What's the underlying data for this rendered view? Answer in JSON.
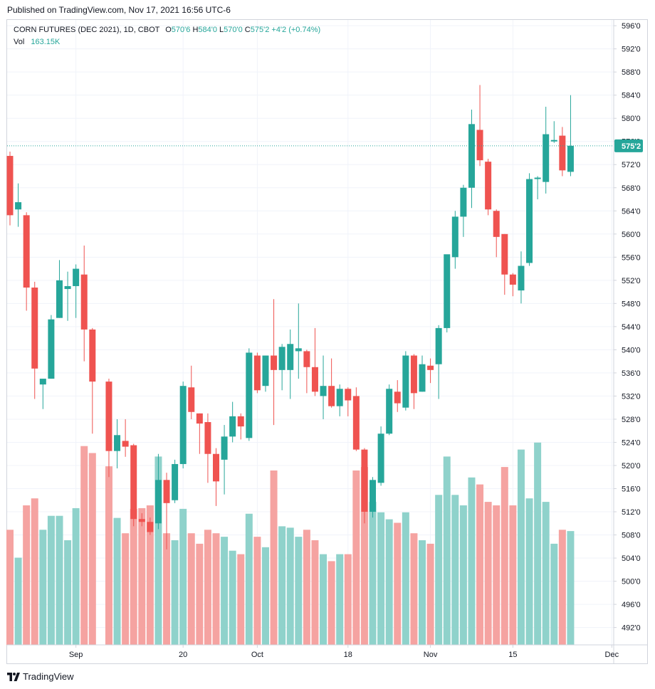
{
  "header": {
    "published": "Published on TradingView.com, Nov 17, 2021 16:56 UTC-6"
  },
  "legend": {
    "symbol": "CORN FUTURES (DEC 2021), 1D, CBOT",
    "o_label": "O",
    "o_value": "570'6",
    "h_label": "H",
    "h_value": "584'0",
    "l_label": "L",
    "l_value": "570'0",
    "c_label": "C",
    "c_value": "575'2",
    "change": "+4'2 (+0.74%)",
    "vol_label": "Vol",
    "vol_value": "163.15K"
  },
  "footer": {
    "logo_text": "TradingView"
  },
  "colors": {
    "up": "#26a69a",
    "down": "#ef5350",
    "up_vol": "#8fd2cb",
    "down_vol": "#f5a3a1",
    "grid": "#f0f3fa",
    "axis_text": "#131722"
  },
  "chart_data": {
    "type": "candlestick",
    "title": "CORN FUTURES (DEC 2021), 1D, CBOT",
    "price_axis": {
      "range": [
        489,
        597
      ],
      "ticks": [
        "496'0",
        "500'0",
        "504'0",
        "508'0",
        "512'0",
        "516'0",
        "520'0",
        "524'0",
        "528'0",
        "532'0",
        "536'0",
        "540'0",
        "544'0",
        "548'0",
        "552'0",
        "556'0",
        "560'0",
        "564'0",
        "568'0",
        "572'0",
        "576'0",
        "580'0",
        "584'0",
        "588'0",
        "592'0",
        "596'0"
      ],
      "tick_values": [
        496,
        500,
        504,
        508,
        512,
        516,
        520,
        524,
        528,
        532,
        536,
        540,
        544,
        548,
        552,
        556,
        560,
        564,
        568,
        572,
        576,
        580,
        584,
        588,
        592,
        596
      ],
      "hidden_ticks": [
        "492'0"
      ],
      "hidden_tick_values": [
        492
      ],
      "last_price": 575.25,
      "last_price_label": "575'2"
    },
    "time_axis": {
      "labels": [
        "Sep",
        "20",
        "Oct",
        "18",
        "Nov",
        "15",
        "Dec"
      ],
      "label_dates": [
        "2021-09-01",
        "2021-09-20",
        "2021-10-01",
        "2021-10-18",
        "2021-11-01",
        "2021-11-15",
        "2021-12-01"
      ]
    },
    "volume": {
      "max_visible": 300000
    },
    "candles": [
      {
        "date": "2021-08-20",
        "o": 573.5,
        "h": 574.25,
        "l": 561.5,
        "c": 563.25,
        "v": 165000
      },
      {
        "date": "2021-08-23",
        "o": 564.25,
        "h": 568.75,
        "l": 561.25,
        "c": 565.5,
        "v": 125000
      },
      {
        "date": "2021-08-24",
        "o": 563.25,
        "h": 563.75,
        "l": 546.75,
        "c": 550.75,
        "v": 200000
      },
      {
        "date": "2021-08-25",
        "o": 550.75,
        "h": 551.75,
        "l": 531.5,
        "c": 536.75,
        "v": 210000
      },
      {
        "date": "2021-08-26",
        "o": 534.0,
        "h": 535.0,
        "l": 529.75,
        "c": 535.0,
        "v": 165000
      },
      {
        "date": "2021-08-27",
        "o": 535.0,
        "h": 546.0,
        "l": 535.0,
        "c": 545.25,
        "v": 185000
      },
      {
        "date": "2021-08-30",
        "o": 545.5,
        "h": 555.5,
        "l": 545.5,
        "c": 552.0,
        "v": 185000
      },
      {
        "date": "2021-08-31",
        "o": 550.5,
        "h": 553.5,
        "l": 545.0,
        "c": 551.0,
        "v": 150000
      },
      {
        "date": "2021-09-01",
        "o": 551.0,
        "h": 554.75,
        "l": 545.5,
        "c": 554.0,
        "v": 196000
      },
      {
        "date": "2021-09-02",
        "o": 553.0,
        "h": 558.0,
        "l": 538.0,
        "c": 543.5,
        "v": 285000
      },
      {
        "date": "2021-09-03",
        "o": 543.5,
        "h": 543.75,
        "l": 525.5,
        "c": 534.5,
        "v": 275000
      },
      {
        "date": "2021-09-07",
        "o": 534.5,
        "h": 535.0,
        "l": 518.0,
        "c": 522.5,
        "v": 256000
      },
      {
        "date": "2021-09-08",
        "o": 522.5,
        "h": 528.0,
        "l": 519.5,
        "c": 525.25,
        "v": 182000
      },
      {
        "date": "2021-09-09",
        "o": 524.25,
        "h": 528.0,
        "l": 521.5,
        "c": 523.25,
        "v": 160000
      },
      {
        "date": "2021-09-10",
        "o": 523.5,
        "h": 523.75,
        "l": 509.5,
        "c": 510.75,
        "v": 195000
      },
      {
        "date": "2021-09-13",
        "o": 510.75,
        "h": 511.75,
        "l": 509.5,
        "c": 510.25,
        "v": 196000
      },
      {
        "date": "2021-09-14",
        "o": 510.25,
        "h": 511.0,
        "l": 508.0,
        "c": 508.5,
        "v": 200000
      },
      {
        "date": "2021-09-15",
        "o": 510.0,
        "h": 522.0,
        "l": 509.0,
        "c": 517.5,
        "v": 270000
      },
      {
        "date": "2021-09-16",
        "o": 517.5,
        "h": 518.75,
        "l": 505.5,
        "c": 513.5,
        "v": 160000
      },
      {
        "date": "2021-09-17",
        "o": 514.0,
        "h": 521.0,
        "l": 513.5,
        "c": 520.25,
        "v": 150000
      },
      {
        "date": "2021-09-20",
        "o": 520.25,
        "h": 534.5,
        "l": 519.5,
        "c": 533.75,
        "v": 195000
      },
      {
        "date": "2021-09-21",
        "o": 533.5,
        "h": 537.25,
        "l": 528.0,
        "c": 529.25,
        "v": 160000
      },
      {
        "date": "2021-09-22",
        "o": 529.0,
        "h": 529.0,
        "l": 522.0,
        "c": 527.25,
        "v": 145000
      },
      {
        "date": "2021-09-23",
        "o": 527.5,
        "h": 529.0,
        "l": 517.0,
        "c": 522.0,
        "v": 165000
      },
      {
        "date": "2021-09-24",
        "o": 522.0,
        "h": 523.0,
        "l": 513.0,
        "c": 517.25,
        "v": 160000
      },
      {
        "date": "2021-09-27",
        "o": 521.0,
        "h": 527.0,
        "l": 515.0,
        "c": 525.0,
        "v": 155000
      },
      {
        "date": "2021-09-28",
        "o": 525.0,
        "h": 531.0,
        "l": 524.0,
        "c": 528.5,
        "v": 135000
      },
      {
        "date": "2021-09-29",
        "o": 528.5,
        "h": 529.0,
        "l": 524.5,
        "c": 526.75,
        "v": 130000
      },
      {
        "date": "2021-09-30",
        "o": 524.75,
        "h": 540.25,
        "l": 524.25,
        "c": 539.5,
        "v": 188000
      },
      {
        "date": "2021-10-01",
        "o": 539.0,
        "h": 539.5,
        "l": 532.5,
        "c": 533.0,
        "v": 155000
      },
      {
        "date": "2021-10-04",
        "o": 533.75,
        "h": 539.0,
        "l": 532.75,
        "c": 539.0,
        "v": 140000
      },
      {
        "date": "2021-10-05",
        "o": 539.0,
        "h": 548.75,
        "l": 527.0,
        "c": 536.5,
        "v": 250000
      },
      {
        "date": "2021-10-06",
        "o": 536.5,
        "h": 541.0,
        "l": 533.0,
        "c": 540.5,
        "v": 170000
      },
      {
        "date": "2021-10-07",
        "o": 536.5,
        "h": 543.5,
        "l": 531.5,
        "c": 541.0,
        "v": 168000
      },
      {
        "date": "2021-10-08",
        "o": 539.75,
        "h": 548.0,
        "l": 535.0,
        "c": 540.25,
        "v": 155000
      },
      {
        "date": "2021-10-11",
        "o": 539.75,
        "h": 540.0,
        "l": 532.5,
        "c": 537.0,
        "v": 165000
      },
      {
        "date": "2021-10-12",
        "o": 537.0,
        "h": 543.75,
        "l": 532.0,
        "c": 532.75,
        "v": 150000
      },
      {
        "date": "2021-10-13",
        "o": 532.0,
        "h": 539.0,
        "l": 528.0,
        "c": 533.75,
        "v": 130000
      },
      {
        "date": "2021-10-14",
        "o": 533.75,
        "h": 538.5,
        "l": 530.0,
        "c": 530.25,
        "v": 120000
      },
      {
        "date": "2021-10-15",
        "o": 530.25,
        "h": 534.0,
        "l": 528.5,
        "c": 533.25,
        "v": 130000
      },
      {
        "date": "2021-10-18",
        "o": 533.25,
        "h": 533.5,
        "l": 528.5,
        "c": 531.25,
        "v": 130000
      },
      {
        "date": "2021-10-19",
        "o": 532.0,
        "h": 533.5,
        "l": 522.5,
        "c": 522.75,
        "v": 250000
      },
      {
        "date": "2021-10-20",
        "o": 522.75,
        "h": 523.0,
        "l": 510.0,
        "c": 512.0,
        "v": 255000
      },
      {
        "date": "2021-10-21",
        "o": 512.0,
        "h": 518.0,
        "l": 511.0,
        "c": 517.5,
        "v": 205000
      },
      {
        "date": "2021-10-22",
        "o": 517.0,
        "h": 526.75,
        "l": 516.5,
        "c": 525.5,
        "v": 190000
      },
      {
        "date": "2021-10-25",
        "o": 525.5,
        "h": 534.0,
        "l": 525.25,
        "c": 533.25,
        "v": 180000
      },
      {
        "date": "2021-10-26",
        "o": 532.75,
        "h": 534.75,
        "l": 529.25,
        "c": 530.75,
        "v": 175000
      },
      {
        "date": "2021-10-27",
        "o": 530.0,
        "h": 539.75,
        "l": 529.5,
        "c": 539.0,
        "v": 190000
      },
      {
        "date": "2021-10-28",
        "o": 539.0,
        "h": 539.25,
        "l": 529.75,
        "c": 532.5,
        "v": 160000
      },
      {
        "date": "2021-10-29",
        "o": 532.75,
        "h": 539.0,
        "l": 532.75,
        "c": 537.5,
        "v": 150000
      },
      {
        "date": "2021-11-01",
        "o": 537.25,
        "h": 538.5,
        "l": 534.25,
        "c": 536.5,
        "v": 145000
      },
      {
        "date": "2021-11-02",
        "o": 537.5,
        "h": 544.25,
        "l": 531.5,
        "c": 543.75,
        "v": 215000
      },
      {
        "date": "2021-11-03",
        "o": 543.75,
        "h": 555.75,
        "l": 543.0,
        "c": 556.5,
        "v": 270000
      },
      {
        "date": "2021-11-04",
        "o": 556.0,
        "h": 564.0,
        "l": 554.0,
        "c": 563.0,
        "v": 215000
      },
      {
        "date": "2021-11-05",
        "o": 563.0,
        "h": 568.5,
        "l": 559.5,
        "c": 568.0,
        "v": 200000
      },
      {
        "date": "2021-11-08",
        "o": 568.0,
        "h": 581.5,
        "l": 564.5,
        "c": 579.0,
        "v": 240000
      },
      {
        "date": "2021-11-09",
        "o": 578.0,
        "h": 585.75,
        "l": 571.75,
        "c": 572.75,
        "v": 230000
      },
      {
        "date": "2021-11-10",
        "o": 572.5,
        "h": 573.0,
        "l": 563.25,
        "c": 564.25,
        "v": 205000
      },
      {
        "date": "2021-11-11",
        "o": 564.0,
        "h": 564.25,
        "l": 556.0,
        "c": 559.5,
        "v": 200000
      },
      {
        "date": "2021-11-12",
        "o": 560.0,
        "h": 560.0,
        "l": 549.5,
        "c": 553.0,
        "v": 255000
      },
      {
        "date": "2021-11-15",
        "o": 553.0,
        "h": 553.25,
        "l": 549.25,
        "c": 551.25,
        "v": 200000
      },
      {
        "date": "2021-11-16",
        "o": 550.25,
        "h": 557.0,
        "l": 548.0,
        "c": 554.5,
        "v": 280000
      },
      {
        "date": "2021-11-17",
        "o": 555.0,
        "h": 570.5,
        "l": 554.5,
        "c": 569.5,
        "v": 210000
      },
      {
        "date": "2021-11-18",
        "o": 569.5,
        "h": 570.0,
        "l": 566.0,
        "c": 569.75,
        "v": 290000
      },
      {
        "date": "2021-11-19",
        "o": 569.0,
        "h": 582.0,
        "l": 567.0,
        "c": 577.25,
        "v": 205000
      },
      {
        "date": "2021-11-22",
        "o": 576.0,
        "h": 579.5,
        "l": 575.75,
        "c": 576.25,
        "v": 145000
      },
      {
        "date": "2021-11-23",
        "o": 577.0,
        "h": 578.5,
        "l": 570.0,
        "c": 571.0,
        "v": 165000
      },
      {
        "date": "2021-11-24",
        "o": 570.75,
        "h": 584.0,
        "l": 570.0,
        "c": 575.25,
        "v": 163150
      }
    ]
  }
}
